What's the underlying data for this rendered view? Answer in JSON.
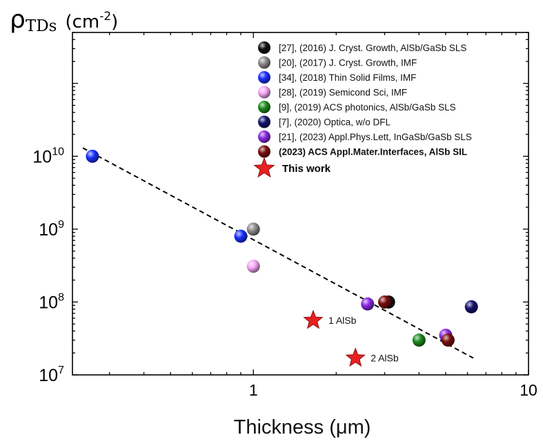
{
  "chart_data": {
    "type": "scatter",
    "title": "",
    "ylabel_symbol": "ρ",
    "ylabel_subscript": "TDs",
    "ylabel_unit": "(cm",
    "ylabel_unit_exp": "-2",
    "ylabel_unit_close": ")",
    "xlabel": "Thickness (μm)",
    "xscale": "log",
    "yscale": "log",
    "xlim": [
      0.22,
      10
    ],
    "ylim": [
      10000000,
      500000000000
    ],
    "grid": false,
    "legend_position": "top-right",
    "x_ticks": [
      {
        "value": 1,
        "label": "1"
      },
      {
        "value": 10,
        "label": "10"
      }
    ],
    "y_ticks": [
      {
        "value": 10000000,
        "base": "10",
        "exp": "7"
      },
      {
        "value": 100000000,
        "base": "10",
        "exp": "8"
      },
      {
        "value": 1000000000,
        "base": "10",
        "exp": "9"
      },
      {
        "value": 10000000000,
        "base": "10",
        "exp": "10"
      }
    ],
    "series": [
      {
        "name": "[27], (2016) J. Cryst. Growth, AlSb/GaSb SLS",
        "color": "#111111",
        "bold": false,
        "points": [
          [
            3.1,
            100000000
          ]
        ]
      },
      {
        "name": "[20], (2017) J. Cryst. Growth, IMF",
        "color": "#8c8c8c",
        "bold": false,
        "points": [
          [
            1.0,
            1000000000
          ]
        ]
      },
      {
        "name": "[34], (2018) Thin Solid Films, IMF",
        "color": "#1a2fff",
        "bold": false,
        "points": [
          [
            0.26,
            10000000000
          ],
          [
            0.9,
            800000000
          ]
        ]
      },
      {
        "name": "[28], (2019) Semicond Sci, IMF",
        "color": "#f7a8f7",
        "bold": false,
        "points": [
          [
            1.0,
            310000000
          ]
        ]
      },
      {
        "name": "[9], (2019) ACS photonics, AlSb/GaSb SLS",
        "color": "#1c8c1c",
        "bold": false,
        "points": [
          [
            4.0,
            30000000
          ]
        ]
      },
      {
        "name": "[7], (2020) Optica, w/o DFL",
        "color": "#14146e",
        "bold": false,
        "points": [
          [
            6.2,
            86000000
          ]
        ]
      },
      {
        "name": "[21], (2023) Appl.Phys.Lett, InGaSb/GaSb SLS",
        "color": "#8a2be2",
        "bold": false,
        "points": [
          [
            2.6,
            94000000
          ],
          [
            5.0,
            35000000
          ]
        ]
      },
      {
        "name": "(2023) ACS Appl.Mater.Interfaces, AlSb SIL",
        "color": "#7a0c0c",
        "bold": true,
        "points": [
          [
            3.0,
            100000000
          ],
          [
            5.1,
            30000000
          ]
        ]
      }
    ],
    "this_work": {
      "label": "This work",
      "color": "#e82020",
      "points": [
        {
          "x": 1.65,
          "y": 56000000,
          "label": "1 AlSb"
        },
        {
          "x": 2.35,
          "y": 17000000,
          "label": "2 AlSb"
        }
      ]
    },
    "trend_line": {
      "style": "dashed",
      "from": [
        0.24,
        13000000000
      ],
      "to": [
        6.3,
        17000000
      ]
    }
  }
}
